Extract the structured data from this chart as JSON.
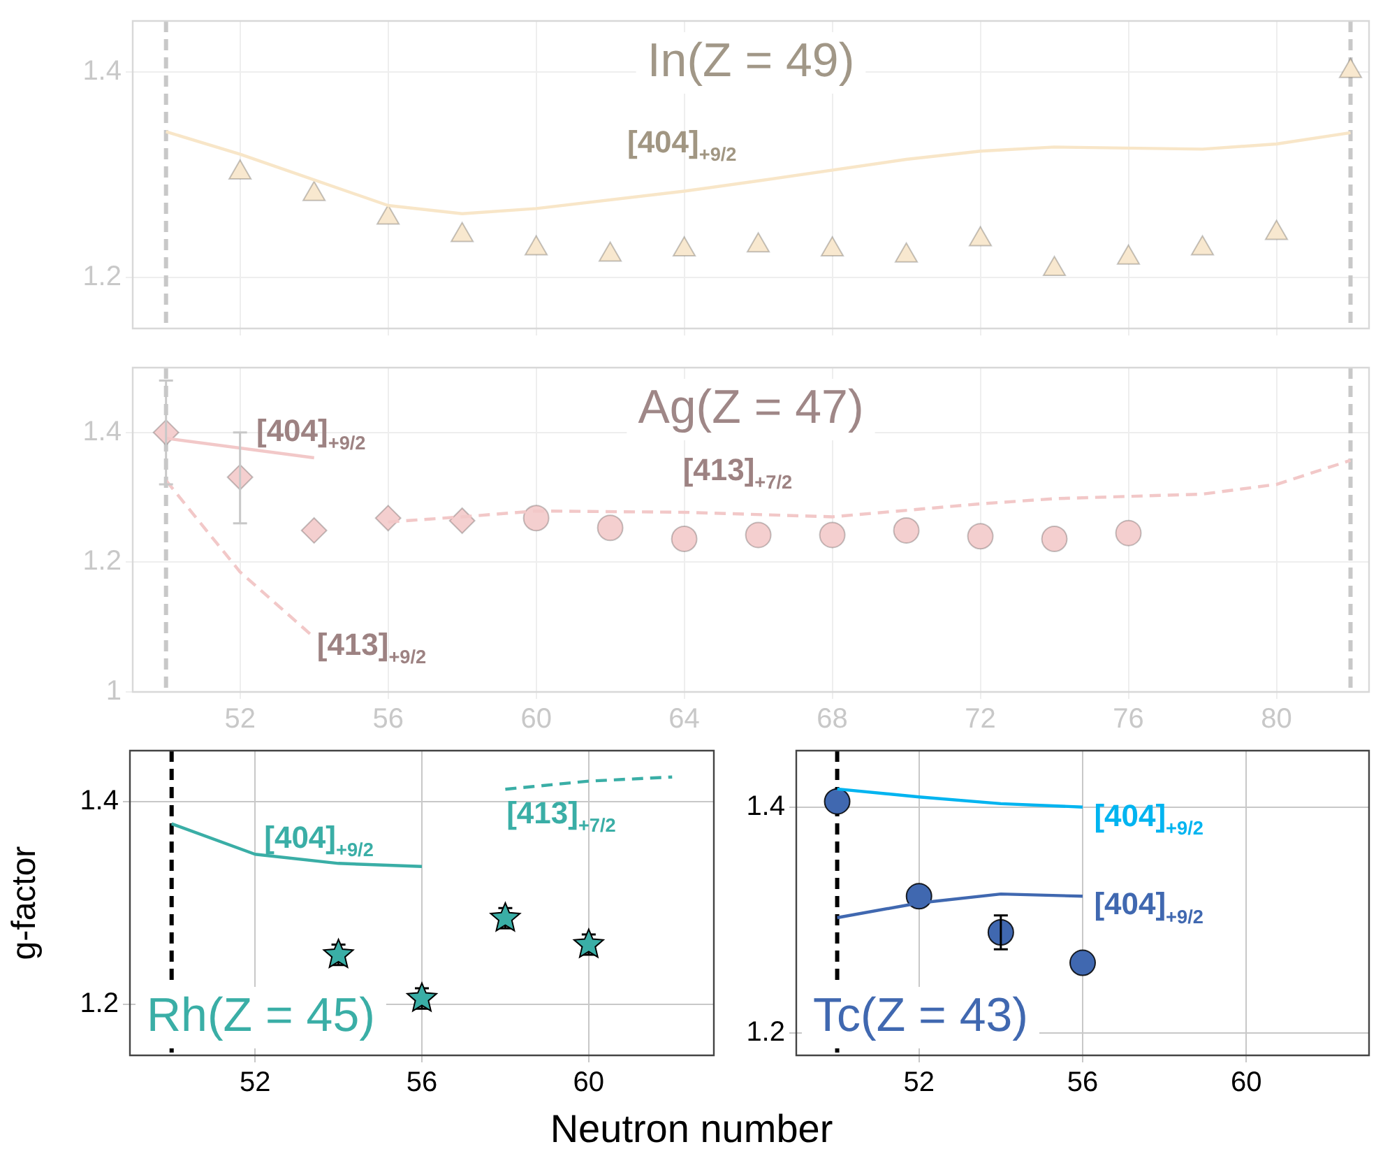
{
  "chart_data": [
    {
      "type": "scatter",
      "title": "In(Z = 49)",
      "xlim": [
        49.1,
        82.5
      ],
      "ylim": [
        1.15,
        1.45
      ],
      "xticks": [
        52,
        56,
        60,
        64,
        68,
        72,
        76,
        80
      ],
      "yticks": [
        1.2,
        1.4
      ],
      "tick_labels": "y",
      "grid": true,
      "legend": false,
      "series": [
        {
          "type": "scatter",
          "marker": "triangle",
          "color": "#f8e8cf",
          "x": [
            52,
            54,
            56,
            58,
            60,
            62,
            64,
            66,
            68,
            70,
            72,
            74,
            76,
            78,
            80,
            82
          ],
          "values": [
            1.302,
            1.281,
            1.258,
            1.241,
            1.228,
            1.222,
            1.227,
            1.231,
            1.227,
            1.221,
            1.237,
            1.208,
            1.219,
            1.228,
            1.243,
            1.401
          ]
        },
        {
          "type": "line",
          "name": "[404]$_{+9/2}$",
          "line_style": "solid",
          "color": "#f8e6c8",
          "x": [
            50,
            52,
            56,
            58,
            60,
            64,
            66,
            70,
            72,
            74,
            78,
            80,
            82
          ],
          "values": [
            1.342,
            1.32,
            1.27,
            1.262,
            1.267,
            1.284,
            1.294,
            1.315,
            1.323,
            1.327,
            1.325,
            1.33,
            1.341
          ]
        }
      ],
      "ref_lines": [
        {
          "axis": "x",
          "value": 50,
          "color": "#c8c8c8",
          "line_style": "dashed"
        },
        {
          "axis": "x",
          "value": 82,
          "color": "#c8c8c8",
          "line_style": "dashed"
        }
      ]
    },
    {
      "type": "scatter",
      "title": "Ag(Z = 47)",
      "xlim": [
        49.1,
        82.5
      ],
      "ylim": [
        1.0,
        1.5
      ],
      "xticks": [
        52,
        56,
        60,
        64,
        68,
        72,
        76,
        80
      ],
      "yticks": [
        1.0,
        1.2,
        1.4
      ],
      "grid": true,
      "legend": false,
      "series": [
        {
          "type": "scatter",
          "marker": "diamond",
          "color": "#f4cfcf",
          "x": [
            50,
            52,
            54,
            56,
            58
          ],
          "values": [
            1.4,
            1.331,
            1.249,
            1.268,
            1.264
          ],
          "errors": [
            [
              1.32,
              1.48
            ],
            [
              1.26,
              1.4
            ],
            null,
            null,
            null
          ]
        },
        {
          "type": "scatter",
          "marker": "circle",
          "color": "#f4cfcf",
          "x": [
            60,
            62,
            64,
            66,
            68,
            70,
            72,
            74,
            76
          ],
          "values": [
            1.268,
            1.253,
            1.236,
            1.242,
            1.242,
            1.249,
            1.24,
            1.236,
            1.245
          ]
        },
        {
          "type": "line",
          "name": "[404]$_{+9/2}$",
          "line_style": "solid",
          "color": "#f2c8c8",
          "x": [
            50,
            54
          ],
          "values": [
            1.391,
            1.361
          ]
        },
        {
          "type": "line",
          "name": "[413]$_{+9/2}$",
          "line_style": "dashed",
          "color": "#f2c8c8",
          "x": [
            50,
            52,
            54
          ],
          "values": [
            1.326,
            1.185,
            1.084
          ]
        },
        {
          "type": "line",
          "name": "[413]$_{+7/2}$",
          "line_style": "dashed",
          "color": "#f2c8c8",
          "x": [
            56,
            58,
            60,
            64,
            68,
            72,
            74,
            78,
            80,
            82
          ],
          "values": [
            1.262,
            1.27,
            1.279,
            1.277,
            1.27,
            1.29,
            1.298,
            1.305,
            1.32,
            1.357
          ]
        }
      ],
      "ref_lines": [
        {
          "axis": "x",
          "value": 50,
          "color": "#c8c8c8",
          "line_style": "dashed"
        },
        {
          "axis": "x",
          "value": 82,
          "color": "#c8c8c8",
          "line_style": "dashed"
        }
      ]
    },
    {
      "type": "scatter",
      "title": "Rh(Z = 45)",
      "xlabel": "Neutron number",
      "ylabel": "g-factor",
      "xlim": [
        49,
        63
      ],
      "ylim": [
        1.15,
        1.45
      ],
      "xticks": [
        52,
        56,
        60
      ],
      "yticks": [
        1.2,
        1.4
      ],
      "grid": true,
      "legend": false,
      "series": [
        {
          "type": "scatter",
          "marker": "star",
          "color": "#3aaea6",
          "x": [
            54,
            56,
            58,
            60
          ],
          "values": [
            1.249,
            1.206,
            1.285,
            1.259
          ],
          "errors": [
            0.01,
            0.01,
            0.01,
            0.01
          ]
        },
        {
          "type": "line",
          "name": "[404]$_{+9/2}$",
          "line_style": "solid",
          "color": "#3aaea6",
          "x": [
            50,
            52,
            54,
            56
          ],
          "values": [
            1.378,
            1.348,
            1.339,
            1.336
          ]
        },
        {
          "type": "line",
          "name": "[413]$_{+7/2}$",
          "line_style": "dashed",
          "color": "#3aaea6",
          "x": [
            58,
            60,
            62
          ],
          "values": [
            1.412,
            1.42,
            1.424
          ]
        }
      ],
      "ref_lines": [
        {
          "axis": "x",
          "value": 50,
          "color": "#000000",
          "line_style": "dashed"
        }
      ]
    },
    {
      "type": "scatter",
      "title": "Tc(Z = 43)",
      "xlim": [
        49,
        63
      ],
      "ylim": [
        1.18,
        1.45
      ],
      "xticks": [
        52,
        56,
        60
      ],
      "yticks": [
        1.2,
        1.4
      ],
      "grid": true,
      "legend": false,
      "series": [
        {
          "type": "scatter",
          "marker": "circle",
          "color": "#4068b0",
          "x": [
            50,
            52,
            54,
            56
          ],
          "values": [
            1.405,
            1.321,
            1.289,
            1.262
          ],
          "errors": [
            null,
            null,
            0.015,
            null
          ]
        },
        {
          "type": "line",
          "name": "[404]$_{+9/2}$",
          "line_style": "solid",
          "color": "#00b4f0",
          "x": [
            50,
            52,
            54,
            56
          ],
          "values": [
            1.416,
            1.409,
            1.403,
            1.4
          ]
        },
        {
          "type": "line",
          "name": "[404]$_{+9/2}$",
          "line_style": "solid",
          "color": "#4068b0",
          "x": [
            50,
            52,
            54,
            56
          ],
          "values": [
            1.302,
            1.315,
            1.323,
            1.321
          ]
        }
      ],
      "ref_lines": [
        {
          "axis": "x",
          "value": 50,
          "color": "#000000",
          "line_style": "dashed"
        }
      ]
    }
  ]
}
